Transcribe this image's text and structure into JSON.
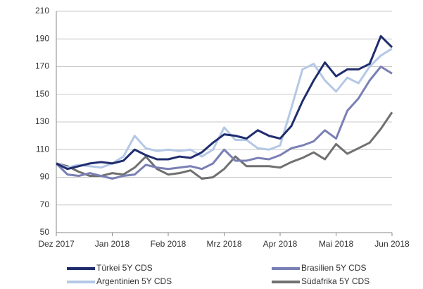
{
  "chart_data": {
    "type": "line",
    "x": [
      0,
      0.2,
      0.4,
      0.6,
      0.8,
      1,
      1.2,
      1.4,
      1.6,
      1.8,
      2,
      2.2,
      2.4,
      2.6,
      2.8,
      3,
      3.2,
      3.4,
      3.6,
      3.8,
      4,
      4.2,
      4.4,
      4.6,
      4.8,
      5,
      5.2,
      5.4,
      5.6,
      5.8,
      6
    ],
    "xlim": [
      0,
      6
    ],
    "xticks": [
      {
        "value": 0,
        "label": "Dez 2017"
      },
      {
        "value": 1,
        "label": "Jan 2018"
      },
      {
        "value": 2,
        "label": "Feb 2018"
      },
      {
        "value": 3,
        "label": "Mrz 2018"
      },
      {
        "value": 4,
        "label": "Apr 2018"
      },
      {
        "value": 5,
        "label": "Mai 2018"
      },
      {
        "value": 6,
        "label": "Jun 2018"
      }
    ],
    "ylim": [
      50,
      210
    ],
    "yticks": [
      50,
      70,
      90,
      110,
      130,
      150,
      170,
      190,
      210
    ],
    "grid": true,
    "legend": "bottom",
    "series": [
      {
        "name": "Türkei 5Y CDS",
        "color": "#1f2d6e",
        "values": [
          100,
          96,
          98,
          100,
          101,
          100,
          102,
          110,
          106,
          103,
          103,
          105,
          104,
          108,
          115,
          121,
          120,
          118,
          124,
          120,
          118,
          127,
          145,
          160,
          173,
          163,
          168,
          168,
          172,
          192,
          184
        ]
      },
      {
        "name": "Brasilien 5Y CDS",
        "color": "#7a7fb4",
        "values": [
          100,
          92,
          91,
          93,
          91,
          89,
          91,
          92,
          99,
          97,
          96,
          97,
          98,
          96,
          100,
          110,
          102,
          102,
          104,
          103,
          106,
          111,
          113,
          116,
          124,
          118,
          138,
          147,
          160,
          170,
          165
        ]
      },
      {
        "name": "Argentinien 5Y CDS",
        "color": "#b4c8e6",
        "values": [
          100,
          97,
          99,
          98,
          97,
          100,
          105,
          120,
          111,
          109,
          110,
          109,
          110,
          105,
          110,
          126,
          117,
          117,
          111,
          110,
          113,
          140,
          168,
          172,
          160,
          152,
          162,
          158,
          170,
          178,
          183
        ]
      },
      {
        "name": "Südafrika 5Y CDS",
        "color": "#707070",
        "values": [
          100,
          98,
          94,
          91,
          91,
          93,
          92,
          97,
          105,
          96,
          92,
          93,
          95,
          89,
          90,
          96,
          105,
          98,
          98,
          98,
          97,
          101,
          104,
          108,
          103,
          114,
          107,
          111,
          115,
          125,
          137
        ]
      }
    ]
  }
}
